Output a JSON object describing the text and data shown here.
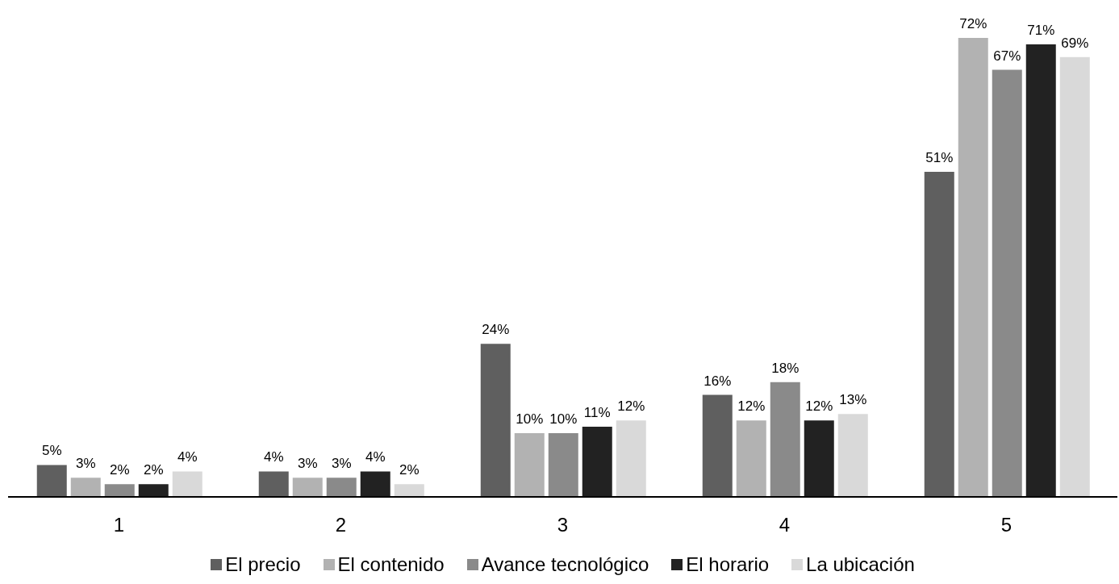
{
  "chart_data": {
    "type": "bar",
    "categories": [
      "1",
      "2",
      "3",
      "4",
      "5"
    ],
    "legend": "bottom",
    "series": [
      {
        "name": "El precio",
        "color": "#5f5f5f",
        "values": [
          5,
          4,
          24,
          16,
          51
        ],
        "value_labels": [
          "5%",
          "4%",
          "24%",
          "16%",
          "51%"
        ]
      },
      {
        "name": "El contenido",
        "color": "#b2b2b2",
        "values": [
          3,
          3,
          10,
          12,
          72
        ],
        "value_labels": [
          "3%",
          "3%",
          "10%",
          "12%",
          "72%"
        ]
      },
      {
        "name": "Avance tecnológico",
        "color": "#8a8a8a",
        "values": [
          2,
          3,
          10,
          18,
          67
        ],
        "value_labels": [
          "2%",
          "3%",
          "10%",
          "18%",
          "67%"
        ]
      },
      {
        "name": "El horario",
        "color": "#222222",
        "values": [
          2,
          4,
          11,
          12,
          71
        ],
        "value_labels": [
          "2%",
          "4%",
          "11%",
          "12%",
          "71%"
        ]
      },
      {
        "name": "La ubicación",
        "color": "#d9d9d9",
        "values": [
          4,
          2,
          12,
          13,
          69
        ],
        "value_labels": [
          "4%",
          "2%",
          "12%",
          "13%",
          "69%"
        ]
      }
    ]
  }
}
